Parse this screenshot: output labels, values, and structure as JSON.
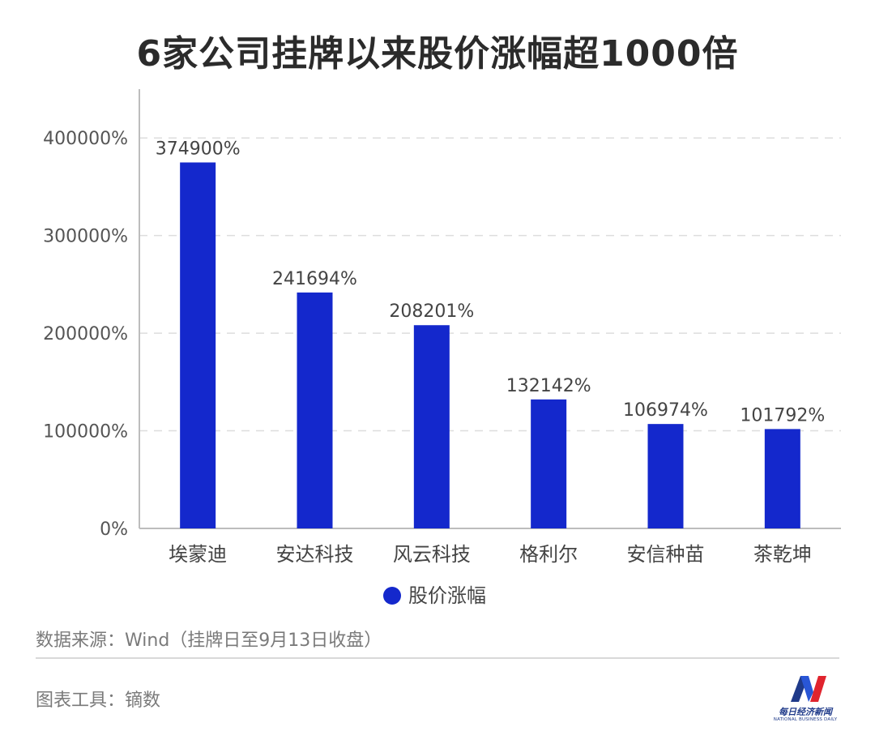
{
  "title": "6家公司挂牌以来股价涨幅超1000倍",
  "chart_data": {
    "type": "bar",
    "categories": [
      "埃蒙迪",
      "安达科技",
      "风云科技",
      "格利尔",
      "安信种苗",
      "茶乾坤"
    ],
    "series": [
      {
        "name": "股价涨幅",
        "values": [
          374900,
          241694,
          208201,
          132142,
          106974,
          101792
        ],
        "color": "#1428cc"
      }
    ],
    "data_labels": [
      "374900%",
      "241694%",
      "208201%",
      "132142%",
      "106974%",
      "101792%"
    ],
    "yticks": [
      0,
      100000,
      200000,
      300000,
      400000
    ],
    "ytick_labels": [
      "0%",
      "100000%",
      "200000%",
      "300000%",
      "400000%"
    ],
    "ylim": [
      0,
      450000
    ],
    "grid": true,
    "legend_position": "bottom-center"
  },
  "footer": {
    "source": "数据来源：Wind（挂牌日至9月13日收盘）",
    "tool": "图表工具：镝数"
  },
  "logo": {
    "name_cn": "每日经济新闻",
    "name_en": "NATIONAL BUSINESS DAILY"
  }
}
